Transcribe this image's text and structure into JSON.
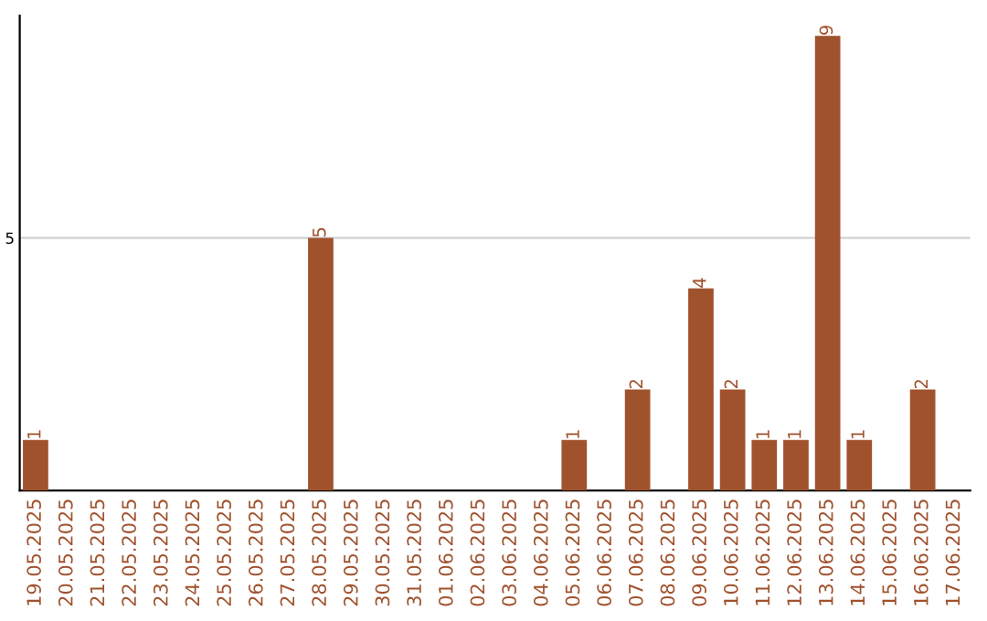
{
  "chart_data": {
    "type": "bar",
    "categories": [
      "19.05.2025",
      "20.05.2025",
      "21.05.2025",
      "22.05.2025",
      "23.05.2025",
      "24.05.2025",
      "25.05.2025",
      "26.05.2025",
      "27.05.2025",
      "28.05.2025",
      "29.05.2025",
      "30.05.2025",
      "31.05.2025",
      "01.06.2025",
      "02.06.2025",
      "03.06.2025",
      "04.06.2025",
      "05.06.2025",
      "06.06.2025",
      "07.06.2025",
      "08.06.2025",
      "09.06.2025",
      "10.06.2025",
      "11.06.2025",
      "12.06.2025",
      "13.06.2025",
      "14.06.2025",
      "15.06.2025",
      "16.06.2025",
      "17.06.2025"
    ],
    "values": [
      1,
      0,
      0,
      0,
      0,
      0,
      0,
      0,
      0,
      5,
      0,
      0,
      0,
      0,
      0,
      0,
      0,
      1,
      0,
      2,
      0,
      4,
      2,
      1,
      1,
      9,
      1,
      0,
      2,
      0
    ],
    "value_labels": [
      "1",
      null,
      null,
      null,
      null,
      null,
      null,
      null,
      null,
      "5",
      null,
      null,
      null,
      null,
      null,
      null,
      null,
      "1",
      null,
      "2",
      null,
      "4",
      "2",
      "1",
      "1",
      "9",
      "1",
      null,
      "2",
      null
    ],
    "color": "#a0522d",
    "ylim": [
      0,
      9.4
    ],
    "yticks": [
      5
    ],
    "grid": "y"
  }
}
